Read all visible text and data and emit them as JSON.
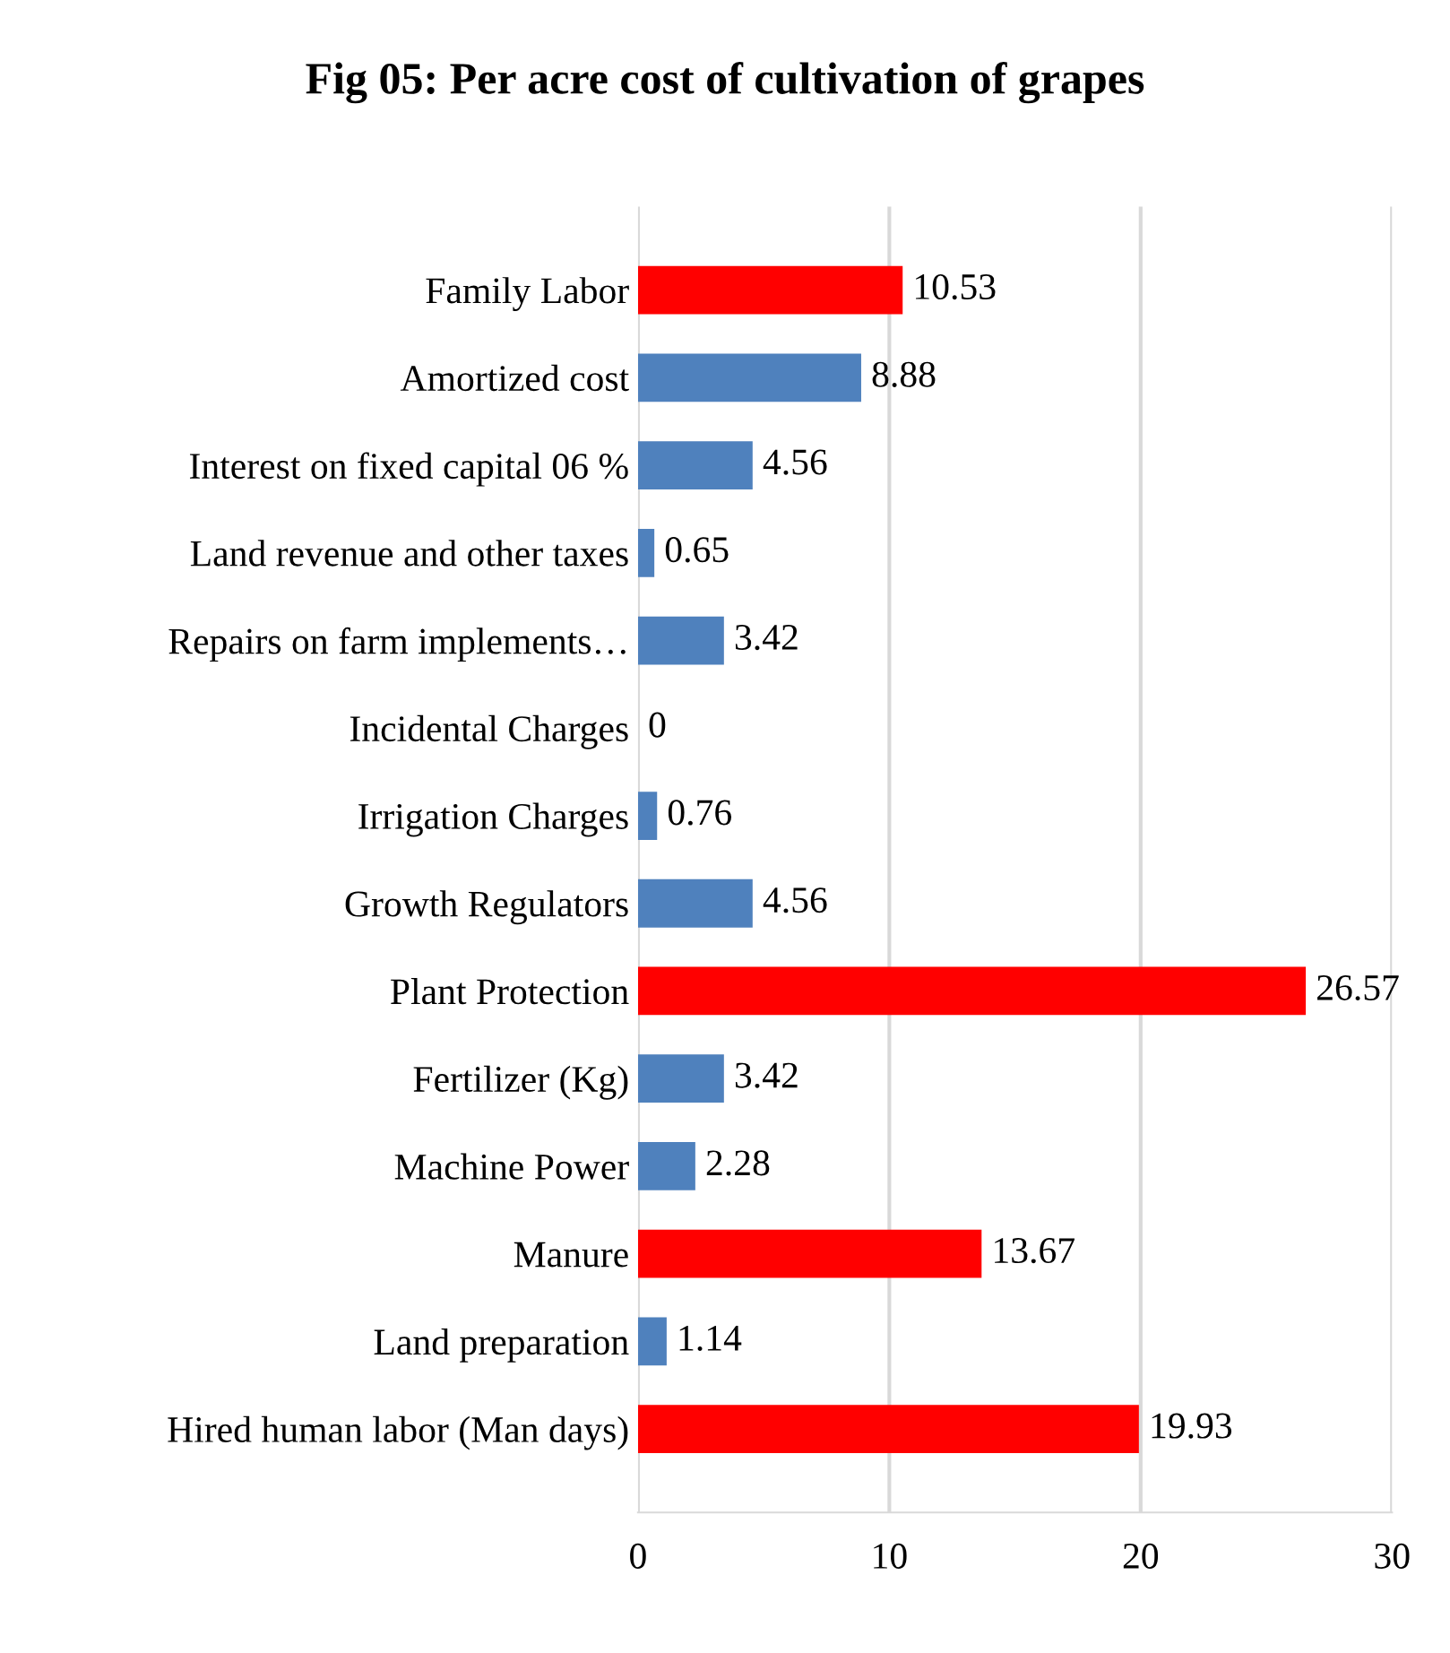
{
  "chart_data": {
    "type": "bar",
    "orientation": "horizontal",
    "title": "Fig 05: Per acre cost of cultivation of grapes",
    "categories": [
      "Family Labor",
      "Amortized cost",
      "Interest on fixed capital 06 %",
      "Land revenue and other taxes",
      "Repairs on farm implements…",
      "Incidental Charges",
      "Irrigation Charges",
      "Growth Regulators",
      "Plant Protection",
      "Fertilizer (Kg)",
      "Machine Power",
      "Manure",
      "Land preparation",
      "Hired human labor (Man days)"
    ],
    "values": [
      10.53,
      8.88,
      4.56,
      0.65,
      3.42,
      0,
      0.76,
      4.56,
      26.57,
      3.42,
      2.28,
      13.67,
      1.14,
      19.93
    ],
    "colors": [
      "#ff0000",
      "#4f81bd",
      "#4f81bd",
      "#4f81bd",
      "#4f81bd",
      "#4f81bd",
      "#4f81bd",
      "#4f81bd",
      "#ff0000",
      "#4f81bd",
      "#4f81bd",
      "#ff0000",
      "#4f81bd",
      "#ff0000"
    ],
    "xlim": [
      0,
      30
    ],
    "xticks": [
      0,
      10,
      20,
      30
    ],
    "grid": "x",
    "data_labels": true
  }
}
